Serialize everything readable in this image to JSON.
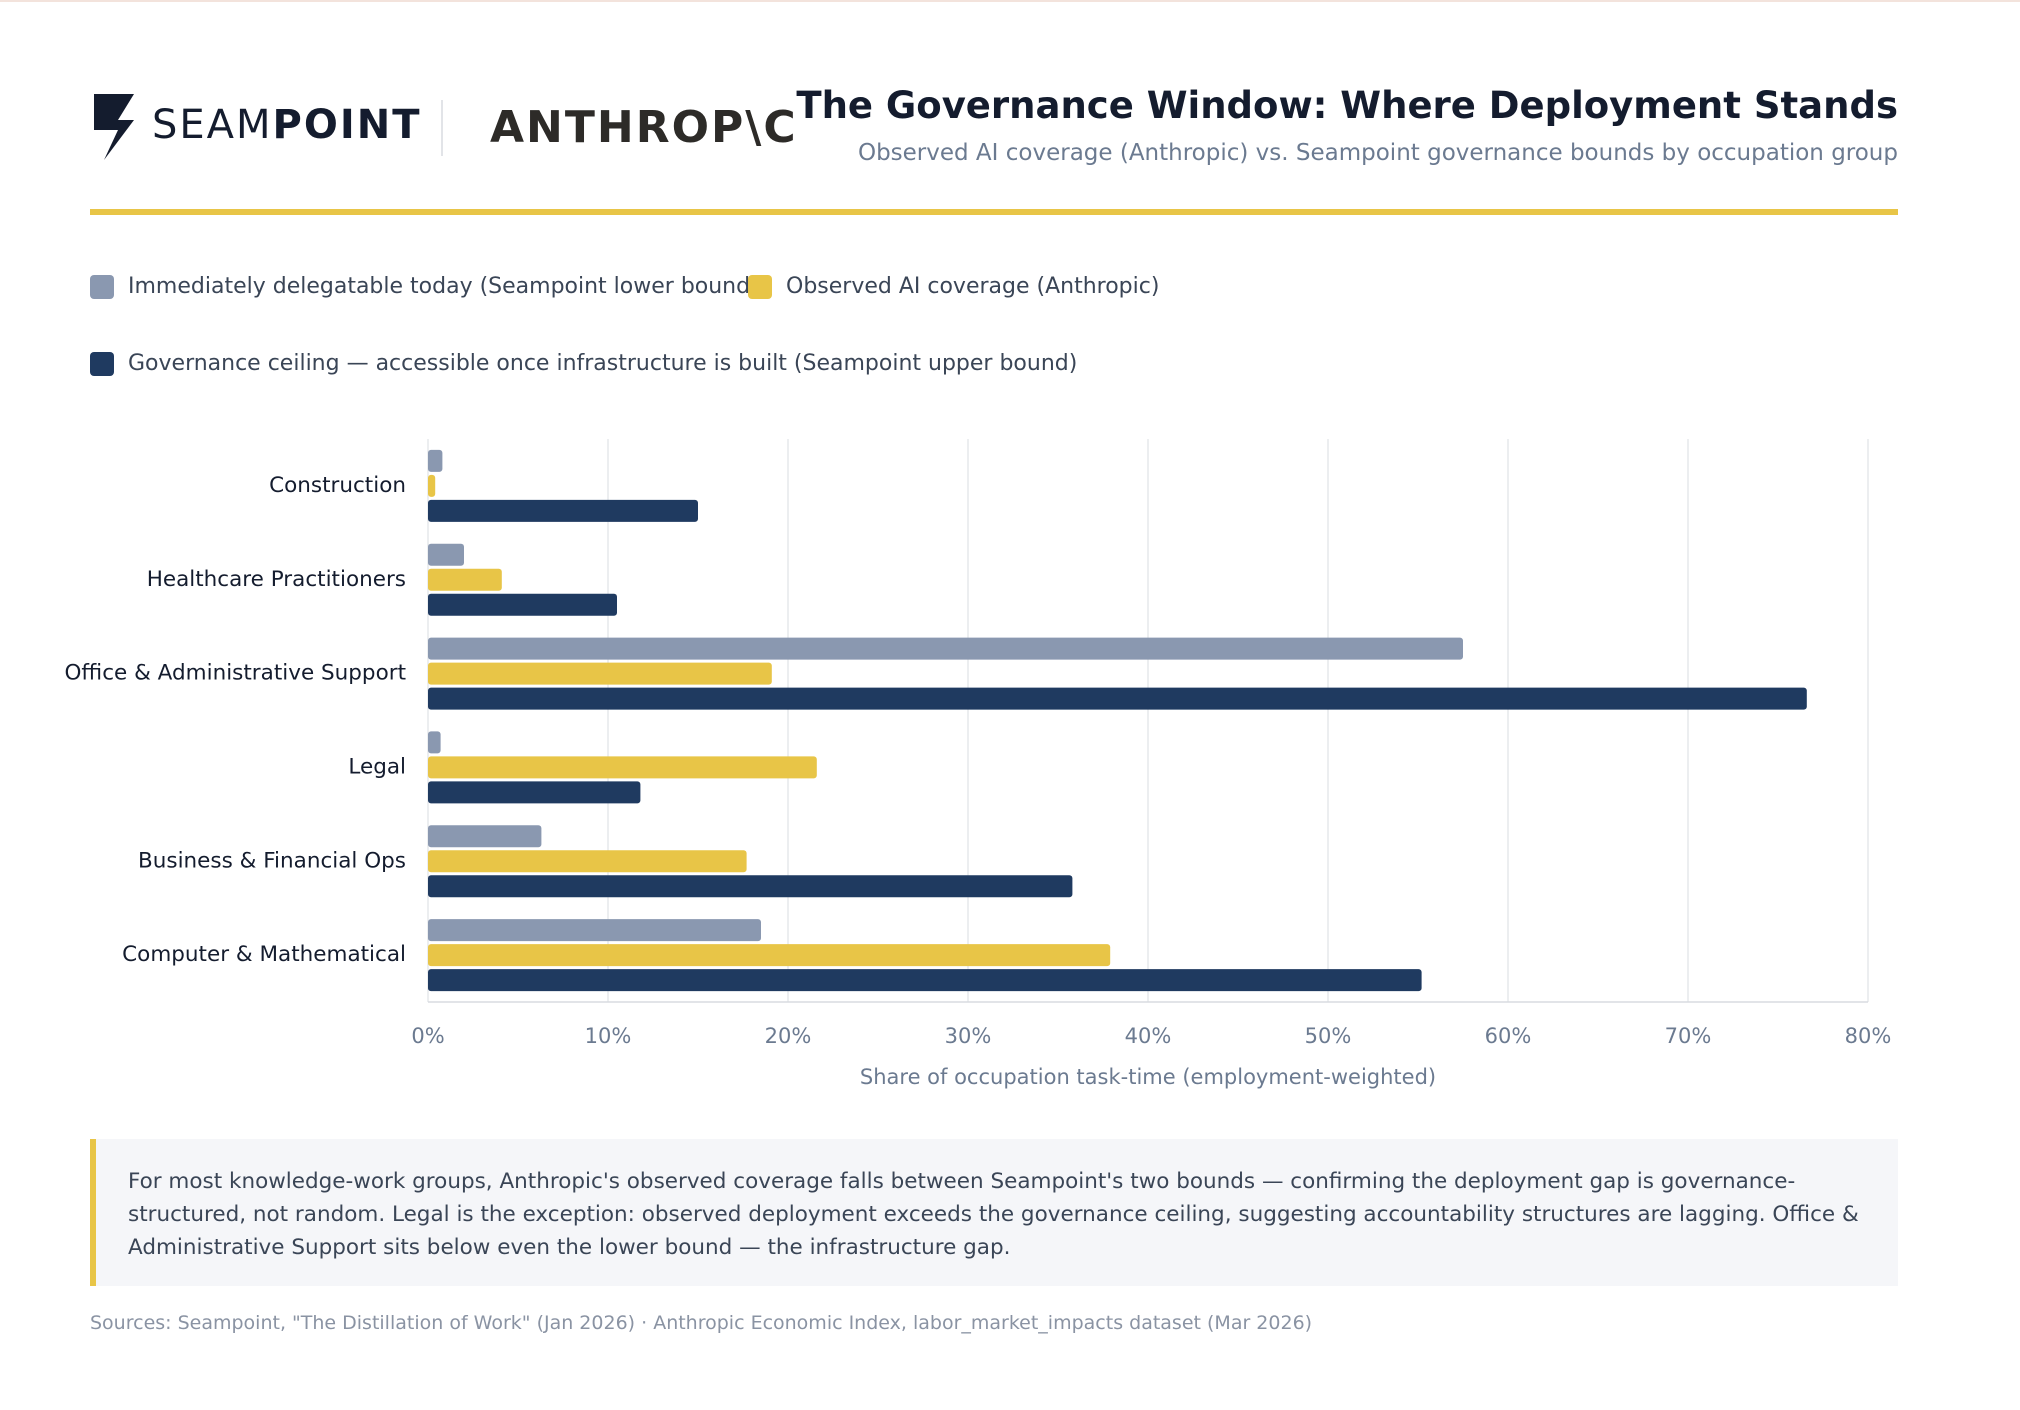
{
  "header": {
    "logo_light": "SEAM",
    "logo_bold": "POINT",
    "partner": "ANTHROP\\C",
    "title": "The Governance Window: Where Deployment Stands",
    "subtitle": "Observed AI coverage (Anthropic) vs. Seampoint governance bounds by occupation group"
  },
  "chart_data": {
    "type": "bar",
    "orientation": "horizontal",
    "categories": [
      "Construction",
      "Healthcare Practitioners",
      "Office & Administrative Support",
      "Legal",
      "Business & Financial Ops",
      "Computer & Mathematical"
    ],
    "series": [
      {
        "name": "Immediately delegatable today (Seampoint lower bound)",
        "color": "#8a98b0",
        "values": [
          0.8,
          2.0,
          57.5,
          0.7,
          6.3,
          18.5
        ]
      },
      {
        "name": "Observed AI coverage (Anthropic)",
        "color": "#e8c547",
        "values": [
          0.4,
          4.1,
          19.1,
          21.6,
          17.7,
          37.9
        ]
      },
      {
        "name": "Governance ceiling — accessible once infrastructure is built (Seampoint upper bound)",
        "color": "#1f3a60",
        "values": [
          15.0,
          10.5,
          76.6,
          11.8,
          35.8,
          55.2
        ]
      }
    ],
    "xlim": [
      0,
      80
    ],
    "xticks": [
      {
        "value": 0,
        "label": "0%"
      },
      {
        "value": 10,
        "label": "10%"
      },
      {
        "value": 20,
        "label": "20%"
      },
      {
        "value": 30,
        "label": "30%"
      },
      {
        "value": 40,
        "label": "40%"
      },
      {
        "value": 50,
        "label": "50%"
      },
      {
        "value": 60,
        "label": "60%"
      },
      {
        "value": 70,
        "label": "70%"
      },
      {
        "value": 80,
        "label": "80%"
      }
    ],
    "xlabel": "Share of occupation task-time (employment-weighted)",
    "grid": true
  },
  "note": "For most knowledge-work groups, Anthropic's observed coverage falls between Seampoint's two bounds — confirming the deployment gap is governance-structured, not random. Legal is the exception: observed deployment exceeds the governance ceiling, suggesting accountability structures are lagging. Office & Administrative Support sits below even the lower bound — the infrastructure gap.",
  "sources": "Sources: Seampoint, \"The Distillation of Work\" (Jan 2026) · Anthropic Economic Index, labor_market_impacts dataset (Mar 2026)"
}
